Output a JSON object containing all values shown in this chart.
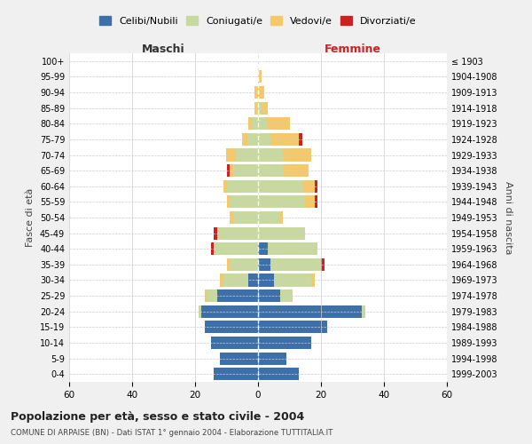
{
  "age_groups": [
    "0-4",
    "5-9",
    "10-14",
    "15-19",
    "20-24",
    "25-29",
    "30-34",
    "35-39",
    "40-44",
    "45-49",
    "50-54",
    "55-59",
    "60-64",
    "65-69",
    "70-74",
    "75-79",
    "80-84",
    "85-89",
    "90-94",
    "95-99",
    "100+"
  ],
  "birth_years": [
    "1999-2003",
    "1994-1998",
    "1989-1993",
    "1984-1988",
    "1979-1983",
    "1974-1978",
    "1969-1973",
    "1964-1968",
    "1959-1963",
    "1954-1958",
    "1949-1953",
    "1944-1948",
    "1939-1943",
    "1934-1938",
    "1929-1933",
    "1924-1928",
    "1919-1923",
    "1914-1918",
    "1909-1913",
    "1904-1908",
    "≤ 1903"
  ],
  "males": {
    "celibi": [
      14,
      12,
      15,
      17,
      18,
      13,
      3,
      0,
      0,
      0,
      0,
      0,
      0,
      0,
      0,
      0,
      0,
      0,
      0,
      0,
      0
    ],
    "coniugati": [
      0,
      0,
      0,
      0,
      1,
      3,
      8,
      9,
      14,
      13,
      8,
      9,
      10,
      8,
      7,
      3,
      2,
      0,
      0,
      0,
      0
    ],
    "vedovi": [
      0,
      0,
      0,
      0,
      0,
      1,
      1,
      1,
      0,
      0,
      1,
      1,
      1,
      1,
      3,
      2,
      1,
      1,
      1,
      0,
      0
    ],
    "divorziati": [
      0,
      0,
      0,
      0,
      0,
      0,
      0,
      0,
      1,
      1,
      0,
      0,
      0,
      1,
      0,
      0,
      0,
      0,
      0,
      0,
      0
    ]
  },
  "females": {
    "nubili": [
      13,
      9,
      17,
      22,
      33,
      7,
      5,
      4,
      3,
      0,
      0,
      0,
      0,
      0,
      0,
      0,
      0,
      0,
      0,
      0,
      0
    ],
    "coniugate": [
      0,
      0,
      0,
      0,
      1,
      4,
      12,
      16,
      16,
      15,
      7,
      15,
      14,
      8,
      8,
      4,
      3,
      1,
      0,
      0,
      0
    ],
    "vedove": [
      0,
      0,
      0,
      0,
      0,
      0,
      1,
      0,
      0,
      0,
      1,
      3,
      4,
      8,
      9,
      9,
      7,
      2,
      2,
      1,
      0
    ],
    "divorziate": [
      0,
      0,
      0,
      0,
      0,
      0,
      0,
      1,
      0,
      0,
      0,
      1,
      1,
      0,
      0,
      1,
      0,
      0,
      0,
      0,
      0
    ]
  },
  "colors": {
    "celibi": "#3d6fa8",
    "coniugati": "#c8d9a0",
    "vedovi": "#f5c96a",
    "divorziati": "#cc2222"
  },
  "xlim": 60,
  "title": "Popolazione per età, sesso e stato civile - 2004",
  "subtitle": "COMUNE DI ARPAISE (BN) - Dati ISTAT 1° gennaio 2004 - Elaborazione TUTTITALIA.IT",
  "ylabel_left": "Fasce di età",
  "ylabel_right": "Anni di nascita",
  "xlabel_left": "Maschi",
  "xlabel_right": "Femmine",
  "legend_labels": [
    "Celibi/Nubili",
    "Coniugati/e",
    "Vedovi/e",
    "Divorziati/e"
  ],
  "bg_color": "#f0f0f0",
  "plot_bg": "#ffffff"
}
